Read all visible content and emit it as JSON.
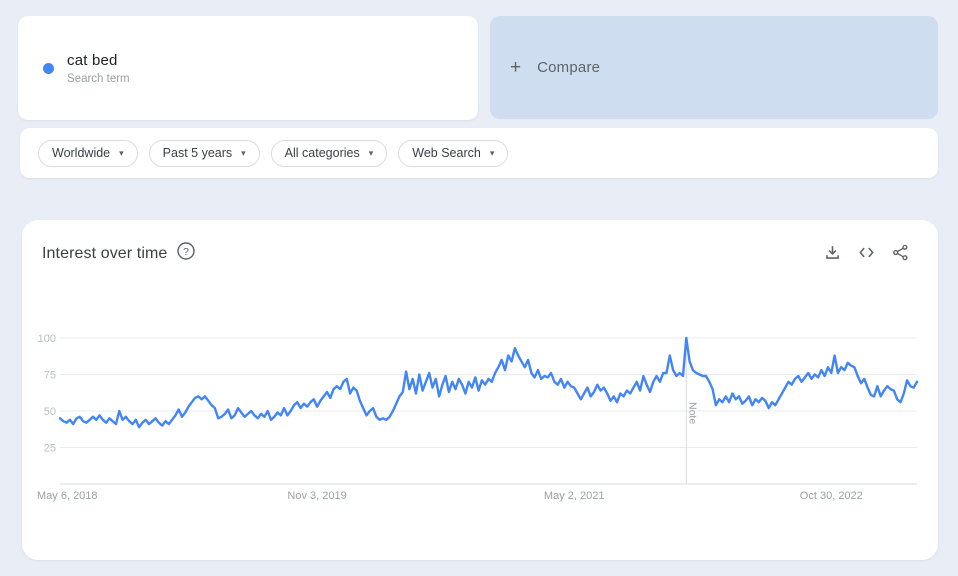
{
  "term_card": {
    "term": "cat bed",
    "subtitle": "Search term",
    "dot_color": "#4285f4"
  },
  "compare_card": {
    "label": "Compare"
  },
  "ui_glyphs": {
    "plus": "+",
    "caret": "▾",
    "help": "?"
  },
  "filters": [
    {
      "name": "geo",
      "label": "Worldwide"
    },
    {
      "name": "time-range",
      "label": "Past 5 years"
    },
    {
      "name": "category",
      "label": "All categories"
    },
    {
      "name": "search-type",
      "label": "Web Search"
    }
  ],
  "chart_card": {
    "title": "Interest over time",
    "action_icons": [
      "download-icon",
      "embed-code-icon",
      "share-icon"
    ],
    "icon_color": "#5f6368"
  },
  "chart_data": {
    "type": "line",
    "title": "Interest over time",
    "frequency": "weekly",
    "ylim": [
      0,
      100
    ],
    "yticks": [
      100,
      75,
      50,
      25
    ],
    "grid": true,
    "line_color": "#4285f4",
    "xticks": [
      {
        "label": "May 6, 2018",
        "index": 0
      },
      {
        "label": "Nov 3, 2019",
        "index": 78
      },
      {
        "label": "May 2, 2021",
        "index": 156
      },
      {
        "label": "Oct 30, 2022",
        "index": 234
      }
    ],
    "note": {
      "label": "Note",
      "index": 190
    },
    "series": [
      {
        "name": "cat bed",
        "color": "#4285f4",
        "values": [
          45,
          43,
          42,
          44,
          41,
          45,
          46,
          43,
          42,
          44,
          46,
          44,
          47,
          44,
          42,
          45,
          43,
          41,
          50,
          44,
          46,
          43,
          41,
          44,
          39,
          42,
          44,
          41,
          43,
          45,
          42,
          40,
          43,
          41,
          44,
          47,
          51,
          46,
          49,
          53,
          56,
          59,
          60,
          58,
          60,
          57,
          54,
          52,
          45,
          46,
          48,
          51,
          45,
          47,
          52,
          49,
          46,
          48,
          50,
          47,
          45,
          48,
          46,
          50,
          44,
          46,
          49,
          47,
          52,
          47,
          50,
          54,
          56,
          52,
          55,
          53,
          56,
          58,
          53,
          57,
          60,
          63,
          59,
          65,
          67,
          65,
          70,
          72,
          62,
          66,
          64,
          57,
          52,
          47,
          50,
          52,
          46,
          44,
          45,
          44,
          46,
          50,
          55,
          60,
          63,
          77,
          65,
          72,
          62,
          75,
          64,
          70,
          76,
          66,
          72,
          60,
          68,
          74,
          63,
          70,
          65,
          72,
          68,
          62,
          70,
          66,
          73,
          64,
          71,
          68,
          72,
          70,
          76,
          80,
          85,
          78,
          88,
          84,
          93,
          88,
          84,
          80,
          85,
          76,
          73,
          78,
          72,
          74,
          73,
          76,
          70,
          68,
          72,
          66,
          70,
          67,
          66,
          62,
          58,
          62,
          66,
          60,
          63,
          68,
          64,
          66,
          62,
          57,
          60,
          56,
          62,
          60,
          64,
          62,
          66,
          70,
          64,
          74,
          68,
          63,
          70,
          74,
          70,
          76,
          76,
          88,
          78,
          74,
          76,
          74,
          100,
          84,
          78,
          76,
          75,
          74,
          74,
          70,
          65,
          54,
          58,
          56,
          60,
          56,
          62,
          58,
          60,
          55,
          57,
          60,
          54,
          58,
          56,
          59,
          57,
          52,
          56,
          54,
          58,
          62,
          66,
          70,
          68,
          72,
          74,
          70,
          73,
          76,
          72,
          75,
          73,
          78,
          74,
          80,
          76,
          88,
          76,
          80,
          78,
          83,
          81,
          80,
          74,
          69,
          72,
          66,
          61,
          60,
          67,
          60,
          64,
          67,
          65,
          64,
          58,
          56,
          62,
          71,
          67,
          66,
          70
        ]
      }
    ]
  }
}
